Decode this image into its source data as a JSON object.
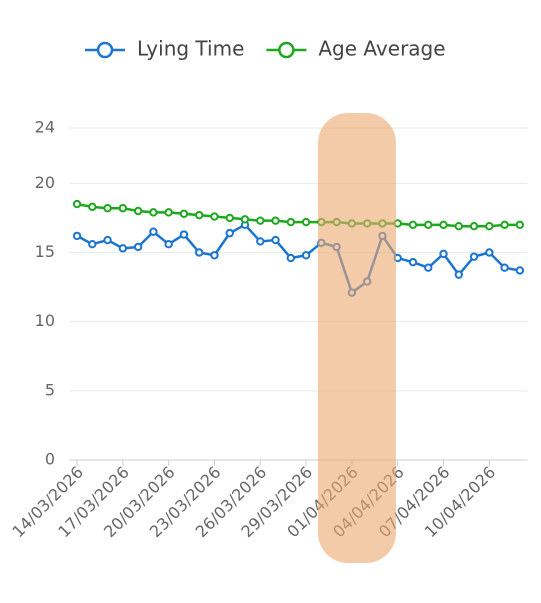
{
  "chart_data": {
    "type": "line",
    "categories": [
      "14/03/2026",
      null,
      null,
      "17/03/2026",
      null,
      null,
      "20/03/2026",
      null,
      null,
      "23/03/2026",
      null,
      null,
      "26/03/2026",
      null,
      null,
      "29/03/2026",
      null,
      null,
      "01/04/2026",
      null,
      null,
      "04/04/2026",
      null,
      null,
      "07/04/2026",
      null,
      null,
      "10/04/2026",
      null,
      null
    ],
    "series": [
      {
        "name": "Lying Time",
        "color": "#1b75d0",
        "values": [
          16.2,
          15.6,
          15.9,
          15.3,
          15.4,
          16.5,
          15.6,
          16.3,
          15.0,
          14.8,
          16.4,
          17.0,
          15.8,
          15.9,
          14.6,
          14.8,
          15.7,
          15.4,
          12.1,
          12.9,
          16.2,
          14.6,
          14.3,
          13.9,
          14.9,
          13.4,
          14.7,
          15.0,
          13.9,
          13.7
        ]
      },
      {
        "name": "Age Average",
        "color": "#1ca81c",
        "values": [
          18.5,
          18.3,
          18.2,
          18.2,
          18.0,
          17.9,
          17.9,
          17.8,
          17.7,
          17.6,
          17.5,
          17.4,
          17.3,
          17.3,
          17.2,
          17.2,
          17.2,
          17.2,
          17.1,
          17.1,
          17.1,
          17.1,
          17.0,
          17.0,
          17.0,
          16.9,
          16.9,
          16.9,
          17.0,
          17.0
        ]
      }
    ],
    "ylim": [
      0,
      24
    ],
    "yticks": [
      0,
      5,
      10,
      15,
      20,
      24
    ],
    "grid": true,
    "legend": "top"
  }
}
